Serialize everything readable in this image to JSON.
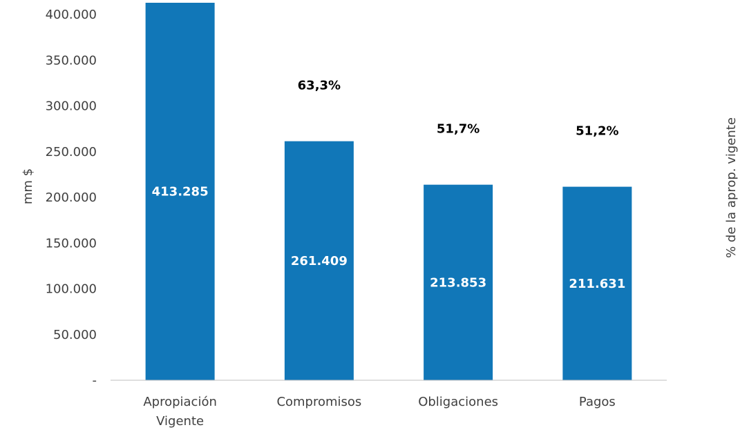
{
  "chart_data": {
    "type": "bar",
    "categories": [
      [
        "Apropiación",
        "Vigente"
      ],
      [
        "Compromisos"
      ],
      [
        "Obligaciones"
      ],
      [
        "Pagos"
      ]
    ],
    "series": [
      {
        "values": [
          413285,
          261409,
          213853,
          211631
        ]
      }
    ],
    "value_labels": [
      "413.285",
      "261.409",
      "213.853",
      "211.631"
    ],
    "percent_labels": [
      "",
      "63,3%",
      "51,7%",
      "51,2%"
    ],
    "ylabel": "mm $",
    "y2label": "% de la aprop. vigente",
    "ylim": [
      0,
      400000
    ],
    "yticks": [
      {
        "value": 0,
        "label": "-"
      },
      {
        "value": 50000,
        "label": "50.000"
      },
      {
        "value": 100000,
        "label": "100.000"
      },
      {
        "value": 150000,
        "label": "150.000"
      },
      {
        "value": 200000,
        "label": "200.000"
      },
      {
        "value": 250000,
        "label": "250.000"
      },
      {
        "value": 300000,
        "label": "300.000"
      },
      {
        "value": 350000,
        "label": "350.000"
      },
      {
        "value": 400000,
        "label": "400.000"
      }
    ],
    "grid": false,
    "colors": {
      "bar": "#1177B8",
      "axis": "#BFBFBF",
      "text": "#404040"
    }
  }
}
